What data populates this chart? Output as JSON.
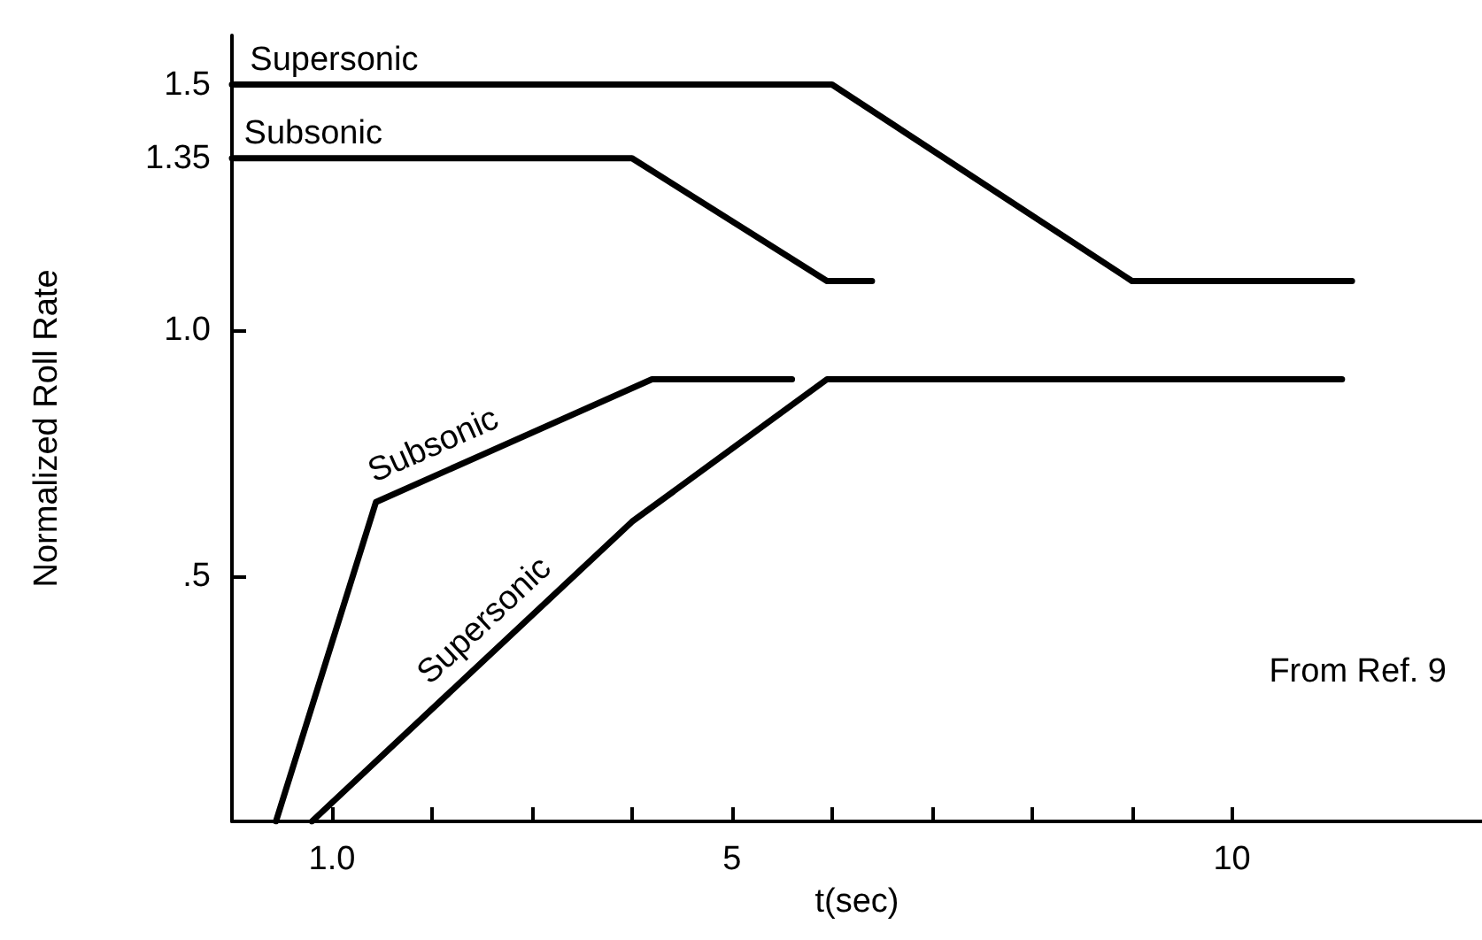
{
  "chart_data": {
    "type": "line",
    "xlabel": "t(sec)",
    "ylabel": "Normalized Roll Rate",
    "xlim": [
      0,
      12.5
    ],
    "ylim": [
      0,
      1.6
    ],
    "xticks": [
      {
        "value": 1,
        "label": "1.0"
      },
      {
        "value": 2,
        "label": null
      },
      {
        "value": 3,
        "label": null
      },
      {
        "value": 4,
        "label": null
      },
      5,
      {
        "value": 6,
        "label": null
      },
      {
        "value": 7,
        "label": null
      },
      {
        "value": 8,
        "label": null
      },
      {
        "value": 9,
        "label": null
      },
      10
    ],
    "yticks": [
      {
        "value": 0.5,
        "label": ".5"
      },
      {
        "value": 1,
        "label": "1.0"
      },
      1.35,
      1.5
    ],
    "grid": false,
    "legend": false,
    "marker": "none",
    "line_style": "solid",
    "series": [
      {
        "name": "Supersonic",
        "color": "#000000",
        "x": [
          0,
          6.0,
          9.0,
          11.2
        ],
        "values": [
          1.5,
          1.5,
          1.1,
          1.1
        ]
      },
      {
        "name": "Subsonic",
        "color": "#000000",
        "x": [
          0,
          4.0,
          5.95,
          6.4
        ],
        "values": [
          1.35,
          1.35,
          1.1,
          1.1
        ]
      },
      {
        "name": "Subsonic",
        "color": "#000000",
        "x": [
          0.44,
          1.44,
          4.2,
          5.6
        ],
        "values": [
          0,
          0.65,
          0.9,
          0.9
        ]
      },
      {
        "name": "Supersonic",
        "color": "#000000",
        "x": [
          0.8,
          4.0,
          5.95,
          11.1
        ],
        "values": [
          0,
          0.61,
          0.9,
          0.9
        ]
      }
    ],
    "annotations": [
      "From Ref. 9"
    ]
  }
}
